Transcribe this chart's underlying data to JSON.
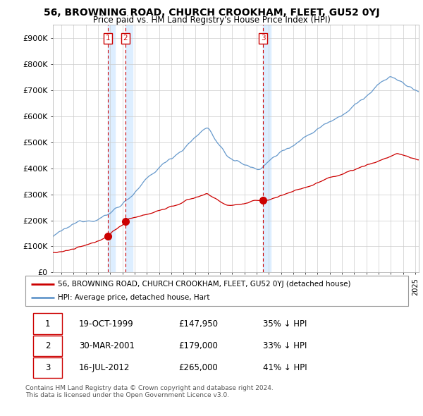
{
  "title": "56, BROWNING ROAD, CHURCH CROOKHAM, FLEET, GU52 0YJ",
  "subtitle": "Price paid vs. HM Land Registry's House Price Index (HPI)",
  "xlim": [
    1995.3,
    2025.3
  ],
  "ylim": [
    0,
    950000
  ],
  "yticks": [
    0,
    100000,
    200000,
    300000,
    400000,
    500000,
    600000,
    700000,
    800000,
    900000
  ],
  "ytick_labels": [
    "£0",
    "£100K",
    "£200K",
    "£300K",
    "£400K",
    "£500K",
    "£600K",
    "£700K",
    "£800K",
    "£900K"
  ],
  "sale_dates": [
    1999.79,
    2001.24,
    2012.54
  ],
  "sale_prices": [
    147950,
    179000,
    265000
  ],
  "sale_labels": [
    "1",
    "2",
    "3"
  ],
  "legend_line1": "56, BROWNING ROAD, CHURCH CROOKHAM, FLEET, GU52 0YJ (detached house)",
  "legend_line2": "HPI: Average price, detached house, Hart",
  "table_rows": [
    [
      "1",
      "19-OCT-1999",
      "£147,950",
      "35% ↓ HPI"
    ],
    [
      "2",
      "30-MAR-2001",
      "£179,000",
      "33% ↓ HPI"
    ],
    [
      "3",
      "16-JUL-2012",
      "£265,000",
      "41% ↓ HPI"
    ]
  ],
  "copyright": "Contains HM Land Registry data © Crown copyright and database right 2024.\nThis data is licensed under the Open Government Licence v3.0.",
  "red_color": "#cc0000",
  "blue_color": "#6699cc",
  "shade_color": "#ddeeff",
  "background_color": "#ffffff",
  "grid_color": "#cccccc"
}
